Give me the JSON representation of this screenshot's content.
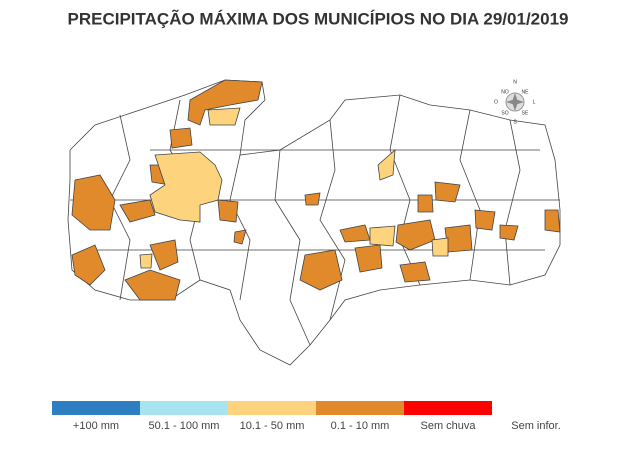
{
  "title": "PRECIPITAÇÃO MÁXIMA DOS MUNICÍPIOS NO DIA 29/01/2019",
  "legend": [
    {
      "label": "+100 mm",
      "color": "#2e7fc1"
    },
    {
      "label": "50.1 - 100 mm",
      "color": "#a8e4ef"
    },
    {
      "label": "10.1 - 50 mm",
      "color": "#fdd47d"
    },
    {
      "label": "0.1 - 10 mm",
      "color": "#e08a2c"
    },
    {
      "label": "Sem chuva",
      "color": "#ff0000"
    },
    {
      "label": "Sem infor.",
      "color": "#ffffff"
    }
  ],
  "compass": [
    "N",
    "NO",
    "NE",
    "O",
    "L",
    "SO",
    "SE",
    "S"
  ]
}
